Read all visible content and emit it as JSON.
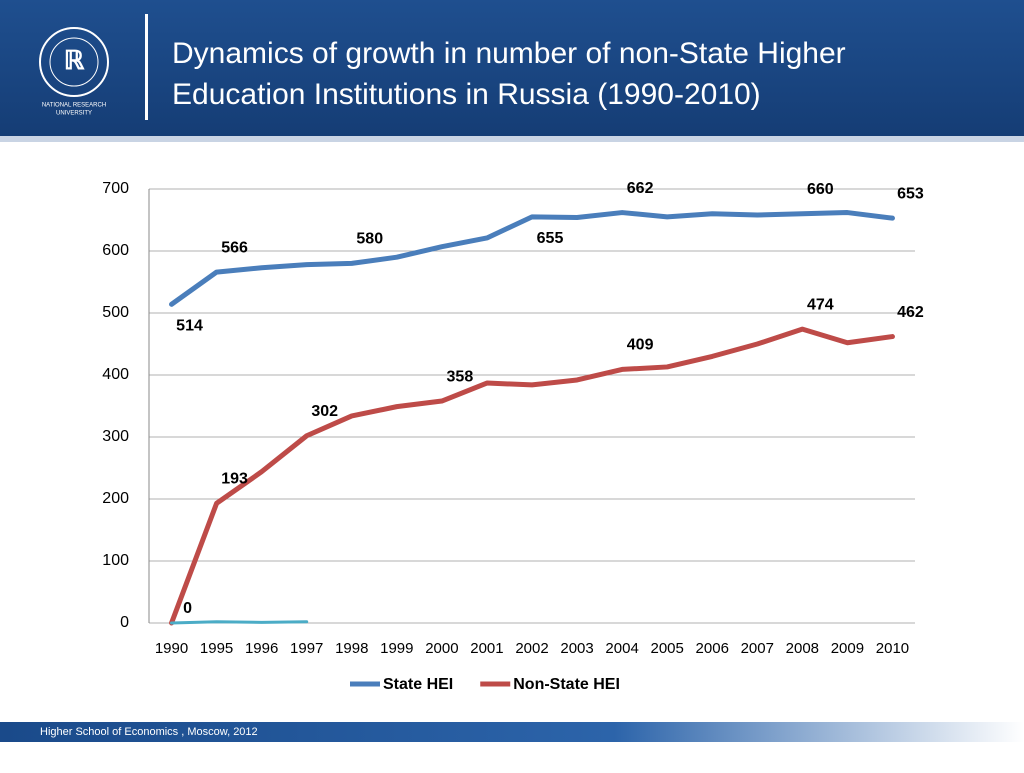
{
  "header": {
    "title_line1": "Dynamics of growth in number of non-State Higher",
    "title_line2": "Education Institutions in Russia  (1990-2010)",
    "logo_caption_line1": "NATIONAL RESEARCH",
    "logo_caption_line2": "UNIVERSITY"
  },
  "footer": {
    "text": "Higher School of Economics , Moscow, 2012"
  },
  "chart_data": {
    "type": "line",
    "categories": [
      "1990",
      "1995",
      "1996",
      "1997",
      "1998",
      "1999",
      "2000",
      "2001",
      "2002",
      "2003",
      "2004",
      "2005",
      "2006",
      "2007",
      "2008",
      "2009",
      "2010"
    ],
    "series": [
      {
        "name": "State HEI",
        "color": "#4a7ebb",
        "values": [
          514,
          566,
          573,
          578,
          580,
          590,
          607,
          621,
          655,
          654,
          662,
          655,
          660,
          658,
          660,
          662,
          653
        ],
        "value_labels": [
          "514",
          "566",
          null,
          null,
          "580",
          null,
          null,
          null,
          "655",
          null,
          "662",
          null,
          null,
          null,
          "660",
          null,
          "653"
        ]
      },
      {
        "name": "Non-State HEI",
        "color": "#be4b48",
        "values": [
          0,
          193,
          244,
          302,
          334,
          349,
          358,
          387,
          384,
          392,
          409,
          413,
          430,
          450,
          474,
          452,
          462
        ],
        "value_labels": [
          "0",
          "193",
          null,
          "302",
          null,
          null,
          "358",
          null,
          null,
          null,
          "409",
          null,
          null,
          null,
          "474",
          null,
          "462"
        ]
      },
      {
        "color": "#4bacc6",
        "values": [
          0,
          2,
          1,
          2,
          null,
          null,
          null,
          null,
          null,
          null,
          null,
          null,
          null,
          null,
          null,
          null,
          null
        ]
      }
    ],
    "ylim": [
      0,
      700
    ],
    "yticks": [
      0,
      100,
      200,
      300,
      400,
      500,
      600,
      700
    ],
    "grid": true,
    "legend": "bottom"
  }
}
